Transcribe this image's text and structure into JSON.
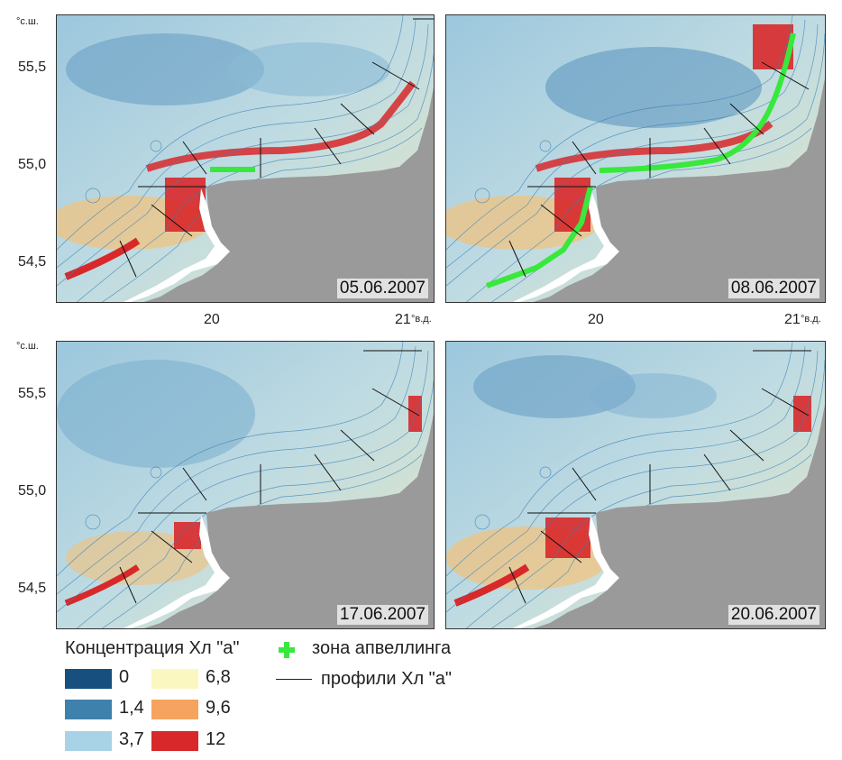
{
  "panels": [
    {
      "date": "05.06.2007"
    },
    {
      "date": "08.06.2007"
    },
    {
      "date": "17.06.2007"
    },
    {
      "date": "20.06.2007"
    }
  ],
  "axes": {
    "lat_ticks": [
      "55,5",
      "55,0",
      "54,5"
    ],
    "lon_ticks": [
      "20",
      "21"
    ],
    "lat_unit": "°с.ш.",
    "lon_unit": "°в.д."
  },
  "legend": {
    "title": "Концентрация Хл \"а\"",
    "classes": [
      {
        "label": "0",
        "color": "#17507f"
      },
      {
        "label": "6,8",
        "color": "#fbf7c0"
      },
      {
        "label": "1,4",
        "color": "#3f81ad"
      },
      {
        "label": "9,6",
        "color": "#f6a35f"
      },
      {
        "label": "3,7",
        "color": "#a8d3e6"
      },
      {
        "label": "12",
        "color": "#d8282a"
      }
    ],
    "upwelling_label": "зона апвеллинга",
    "upwelling_color": "#39e83c",
    "profiles_label": "профили Хл \"а\""
  }
}
